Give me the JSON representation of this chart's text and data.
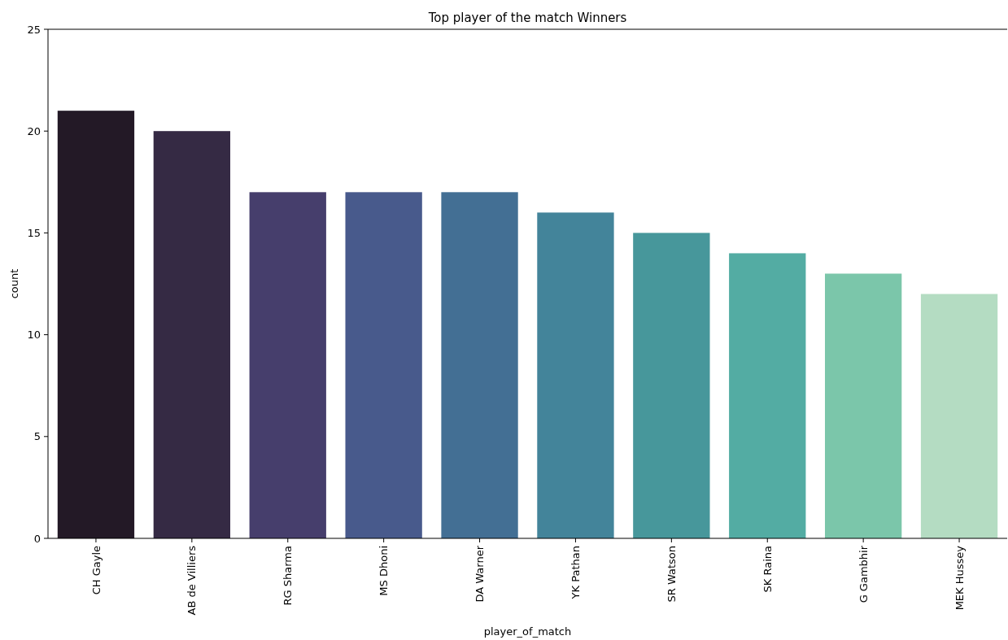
{
  "chart_data": {
    "type": "bar",
    "title": "Top player of the match Winners",
    "xlabel": "player_of_match",
    "ylabel": "count",
    "categories": [
      "CH Gayle",
      "AB de Villiers",
      "RG Sharma",
      "MS Dhoni",
      "DA Warner",
      "YK Pathan",
      "SR Watson",
      "SK Raina",
      "G Gambhir",
      "MEK Hussey"
    ],
    "values": [
      21,
      20,
      17,
      17,
      17,
      16,
      15,
      14,
      13,
      12
    ],
    "colors": [
      "#231926",
      "#352a44",
      "#463e6c",
      "#485a8c",
      "#436f94",
      "#43849a",
      "#47979b",
      "#53aca3",
      "#7bc6aa",
      "#b4dcc2"
    ],
    "ylim": [
      0,
      25
    ],
    "yticks": [
      0,
      5,
      10,
      15,
      20,
      25
    ],
    "grid": false
  }
}
